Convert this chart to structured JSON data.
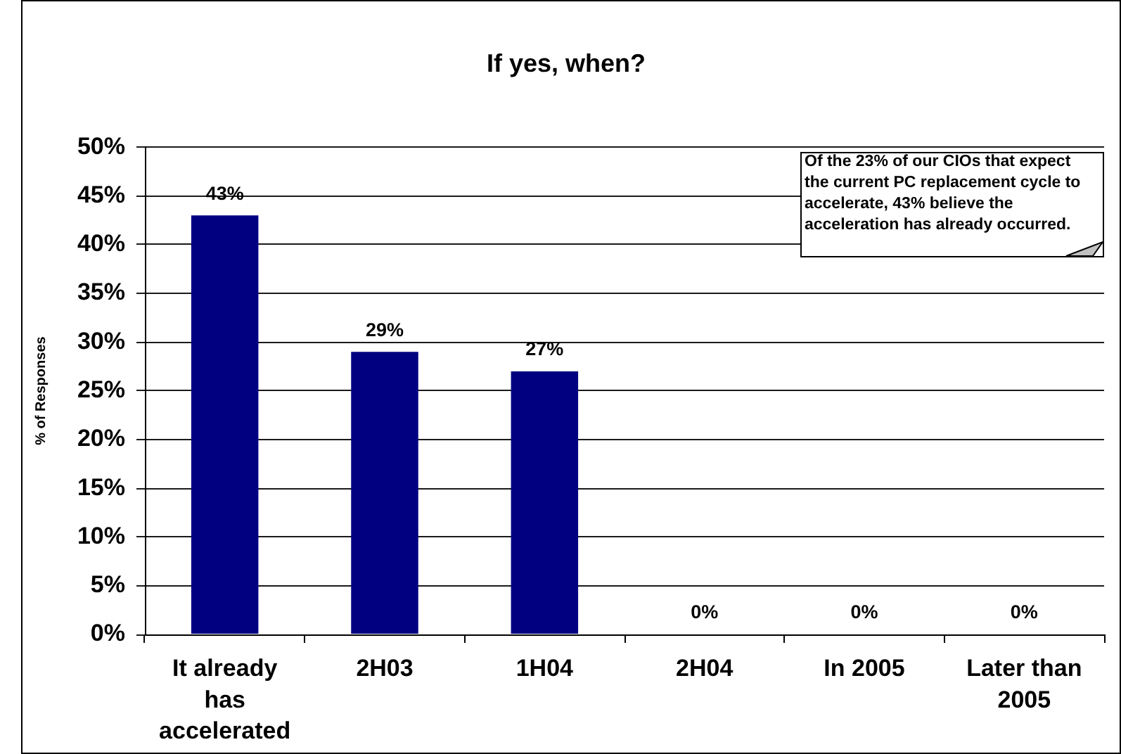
{
  "chart_data": {
    "type": "bar",
    "title": "If yes, when?",
    "ylabel": "% of Responses",
    "categories": [
      "It already has accelerated",
      "2H03",
      "1H04",
      "2H04",
      "In 2005",
      "Later than 2005"
    ],
    "values": [
      43,
      29,
      27,
      0,
      0,
      0
    ],
    "value_labels": [
      "43%",
      "29%",
      "27%",
      "0%",
      "0%",
      "0%"
    ],
    "color": "#000080",
    "ylim": [
      0,
      50
    ],
    "yticks": [
      {
        "value": 0,
        "label": "0%"
      },
      {
        "value": 5,
        "label": "5%"
      },
      {
        "value": 10,
        "label": "10%"
      },
      {
        "value": 15,
        "label": "15%"
      },
      {
        "value": 20,
        "label": "20%"
      },
      {
        "value": 25,
        "label": "25%"
      },
      {
        "value": 30,
        "label": "30%"
      },
      {
        "value": 35,
        "label": "35%"
      },
      {
        "value": 40,
        "label": "40%"
      },
      {
        "value": 45,
        "label": "45%"
      },
      {
        "value": 50,
        "label": "50%"
      }
    ],
    "grid": "y",
    "annotations": [
      "Of the 23% of our CIOs that expect the current PC replacement cycle to accelerate, 43% believe the acceleration has already occurred."
    ]
  }
}
